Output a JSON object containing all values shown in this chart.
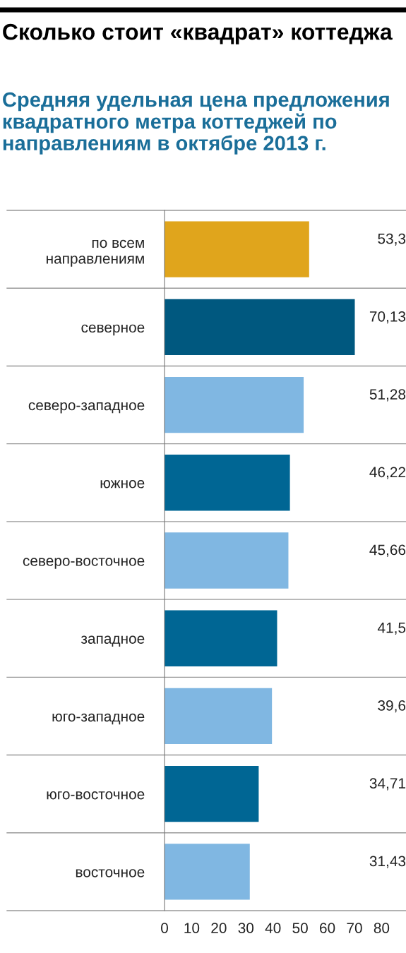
{
  "chart_data": {
    "type": "bar",
    "orientation": "horizontal",
    "title": "Сколько стоит «квадрат» коттеджа",
    "subtitle": "Средняя удельная цена предложения квадратного метра коттеджей по направлениям в октябре 2013 г.",
    "categories": [
      "по всем\nнаправлениям",
      "северное",
      "северо-западное",
      "южное",
      "северо-восточное",
      "западное",
      "юго-западное",
      "юго-восточное",
      "восточное"
    ],
    "values": [
      53.3,
      70.13,
      51.28,
      46.22,
      45.66,
      41.5,
      39.6,
      34.71,
      31.43
    ],
    "colors": [
      "#e0a51c",
      "#00587f",
      "#80b7e2",
      "#006694",
      "#80b7e2",
      "#006694",
      "#80b7e2",
      "#006694",
      "#80b7e2"
    ],
    "value_labels": [
      "53,3",
      "70,13",
      "51,28",
      "46,22",
      "45,66",
      "41,5",
      "39,6",
      "34,71",
      "31,43"
    ],
    "xlim": [
      0,
      89
    ],
    "xticks": [
      0,
      10,
      20,
      30,
      40,
      50,
      60,
      70,
      80
    ],
    "grid": false,
    "legend": false
  }
}
